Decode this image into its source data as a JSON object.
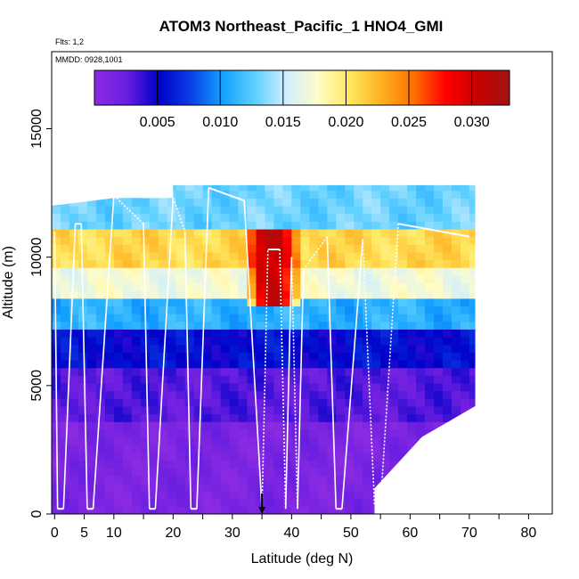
{
  "chart_data": {
    "type": "heatmap",
    "title": "ATOM3 Northeast_Pacific_1 HNO4_GMI",
    "flights_label": "Flts: 1,2",
    "date_label": "MMDD: 0928,1001",
    "xlabel": "Latitude (deg N)",
    "ylabel": "Altitude (m)",
    "xlim": [
      -0.5,
      84
    ],
    "ylim": [
      0,
      18000
    ],
    "x_ticks": [
      0,
      5,
      10,
      20,
      30,
      40,
      50,
      60,
      70,
      80
    ],
    "x_tick_labels": [
      "0",
      "5",
      "10",
      "20",
      "30",
      "40",
      "50",
      "60",
      "70",
      "80"
    ],
    "y_ticks": [
      0,
      5000,
      10000,
      15000
    ],
    "y_tick_labels": [
      "0",
      "5000",
      "10000",
      "15000"
    ],
    "colorbar": {
      "range": [
        0.0,
        0.033
      ],
      "ticks": [
        0.005,
        0.01,
        0.015,
        0.02,
        0.025,
        0.03
      ],
      "tick_labels": [
        "0.005",
        "0.010",
        "0.015",
        "0.020",
        "0.025",
        "0.030"
      ],
      "colors": [
        "#8a2be2",
        "#6a1ee0",
        "#0000c8",
        "#0a3ee6",
        "#12a0ff",
        "#5ccfff",
        "#cfefff",
        "#fffcc8",
        "#ffe860",
        "#ffb020",
        "#ff7000",
        "#ff0000",
        "#c80000",
        "#a01414"
      ]
    },
    "heatmap_layers": [
      {
        "alt_range": [
          0,
          3500
        ],
        "value": 0.0012
      },
      {
        "alt_range": [
          3500,
          5500
        ],
        "value": 0.003
      },
      {
        "alt_range": [
          5500,
          7000
        ],
        "value": 0.0055
      },
      {
        "alt_range": [
          7000,
          8200
        ],
        "value": 0.011
      },
      {
        "alt_range": [
          8200,
          9500
        ],
        "value": 0.017
      },
      {
        "alt_range": [
          9500,
          11000
        ],
        "value": 0.021
      },
      {
        "alt_range": [
          11000,
          12800
        ],
        "value": 0.013
      }
    ],
    "hotspot": {
      "lat": [
        32,
        40
      ],
      "alt": [
        8000,
        11000
      ],
      "value": 0.031
    },
    "flight_track": [
      {
        "lat": 0,
        "alt": 11000
      },
      {
        "lat": 0.5,
        "alt": 200
      },
      {
        "lat": 1.5,
        "alt": 200
      },
      {
        "lat": 3.5,
        "alt": 11300
      },
      {
        "lat": 4.5,
        "alt": 11300
      },
      {
        "lat": 5.5,
        "alt": 200
      },
      {
        "lat": 6.5,
        "alt": 200
      },
      {
        "lat": 10,
        "alt": 12400
      },
      {
        "lat": 15,
        "alt": 11300
      },
      {
        "lat": 16,
        "alt": 200
      },
      {
        "lat": 17,
        "alt": 200
      },
      {
        "lat": 20,
        "alt": 12300
      },
      {
        "lat": 22,
        "alt": 11000
      },
      {
        "lat": 23,
        "alt": 200
      },
      {
        "lat": 24,
        "alt": 200
      },
      {
        "lat": 26,
        "alt": 12700
      },
      {
        "lat": 32,
        "alt": 12200
      },
      {
        "lat": 35,
        "alt": 200
      },
      {
        "lat": 36,
        "alt": 10300
      },
      {
        "lat": 38,
        "alt": 10300
      },
      {
        "lat": 39,
        "alt": 200
      },
      {
        "lat": 40,
        "alt": 10000
      },
      {
        "lat": 41,
        "alt": 200
      },
      {
        "lat": 42,
        "alt": 9500
      },
      {
        "lat": 46,
        "alt": 10800
      },
      {
        "lat": 47.5,
        "alt": 200
      },
      {
        "lat": 48.5,
        "alt": 200
      },
      {
        "lat": 52,
        "alt": 10700
      },
      {
        "lat": 54,
        "alt": 300
      },
      {
        "lat": 55,
        "alt": 300
      },
      {
        "lat": 58,
        "alt": 11300
      },
      {
        "lat": 70,
        "alt": 10800
      }
    ],
    "arrow_marker": {
      "lat": 35,
      "alt_top": 800,
      "alt_bottom": 0
    }
  }
}
